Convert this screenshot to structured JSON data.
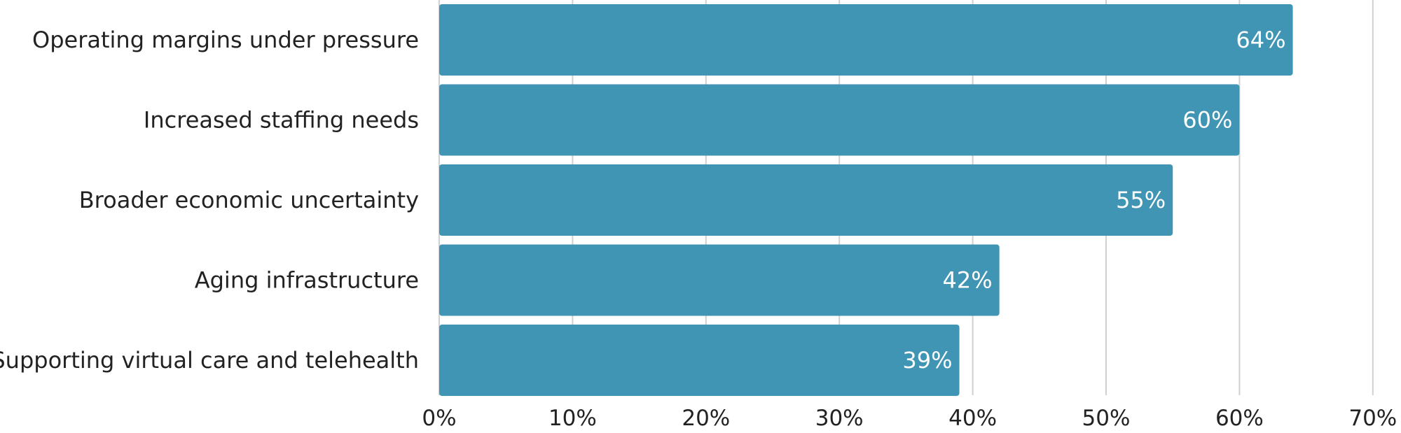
{
  "chart_data": {
    "type": "bar",
    "orientation": "horizontal",
    "title": "",
    "xlabel": "",
    "ylabel": "",
    "categories": [
      "Operating margins under pressure",
      "Increased staffing needs",
      "Broader economic uncertainty",
      "Aging infrastructure",
      "Supporting virtual care and telehealth"
    ],
    "values": [
      64,
      60,
      55,
      42,
      39
    ],
    "value_labels": [
      "64%",
      "60%",
      "55%",
      "42%",
      "39%"
    ],
    "xlim": [
      0,
      70
    ],
    "ticks": [
      0,
      10,
      20,
      30,
      40,
      50,
      60,
      70
    ],
    "tick_labels": [
      "0%",
      "10%",
      "20%",
      "30%",
      "40%",
      "50%",
      "60%",
      "70%"
    ],
    "grid": "vertical",
    "legend": "none",
    "bar_color": "#4195b4",
    "gridline_color": "#d0d0d0"
  }
}
